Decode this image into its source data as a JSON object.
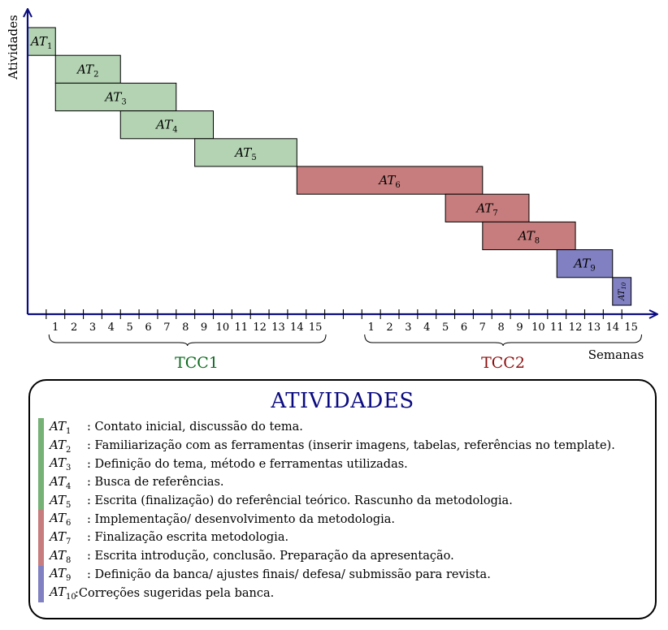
{
  "y_axis_label": "Atividades",
  "x_axis_label": "Semanas",
  "groups": [
    {
      "name": "TCC1",
      "color": "#0d6b1f",
      "weeks": [
        "1",
        "2",
        "3",
        "4",
        "5",
        "6",
        "7",
        "8",
        "9",
        "10",
        "11",
        "12",
        "13",
        "14",
        "15"
      ]
    },
    {
      "name": "TCC2",
      "color": "#8b0f0f",
      "weeks": [
        "1",
        "2",
        "3",
        "4",
        "5",
        "6",
        "7",
        "8",
        "9",
        "10",
        "11",
        "12",
        "13",
        "14",
        "15"
      ]
    }
  ],
  "colors": {
    "green": "#b3d3b3",
    "red": "#c77d7d",
    "blue": "#8080c2",
    "axis": "#0b0b80"
  },
  "tasks": [
    {
      "id": "AT",
      "sub": "1",
      "start": 0,
      "end": 1.5,
      "color": "green"
    },
    {
      "id": "AT",
      "sub": "2",
      "start": 1.5,
      "end": 5,
      "color": "green"
    },
    {
      "id": "AT",
      "sub": "3",
      "start": 1.5,
      "end": 8,
      "color": "green"
    },
    {
      "id": "AT",
      "sub": "4",
      "start": 5,
      "end": 10,
      "color": "green"
    },
    {
      "id": "AT",
      "sub": "5",
      "start": 9,
      "end": 14.5,
      "color": "green"
    },
    {
      "id": "AT",
      "sub": "6",
      "start": 14.5,
      "end": 24.5,
      "color": "red"
    },
    {
      "id": "AT",
      "sub": "7",
      "start": 22.5,
      "end": 27,
      "color": "red"
    },
    {
      "id": "AT",
      "sub": "8",
      "start": 24.5,
      "end": 29.5,
      "color": "red"
    },
    {
      "id": "AT",
      "sub": "9",
      "start": 28.5,
      "end": 31.5,
      "color": "blue"
    },
    {
      "id": "AT",
      "sub": "10",
      "start": 31.5,
      "end": 32.5,
      "color": "blue"
    }
  ],
  "legend": {
    "title": "ATIVIDADES",
    "items": [
      {
        "id": "AT",
        "sub": "1",
        "text": ": Contato inicial, discussão do tema.",
        "color": "#76b176"
      },
      {
        "id": "AT",
        "sub": "2",
        "text": ": Familiarização com as ferramentas (inserir imagens, tabelas, referências no template).",
        "color": "#76b176"
      },
      {
        "id": "AT",
        "sub": "3",
        "text": ": Definição do tema, método e ferramentas utilizadas.",
        "color": "#76b176"
      },
      {
        "id": "AT",
        "sub": "4",
        "text": ": Busca de referências.",
        "color": "#76b176"
      },
      {
        "id": "AT",
        "sub": "5",
        "text": ": Escrita (finalização) do referêncial teórico. Rascunho da metodologia.",
        "color": "#76b176"
      },
      {
        "id": "AT",
        "sub": "6",
        "text": ": Implementação/ desenvolvimento da metodologia.",
        "color": "#c77d7d"
      },
      {
        "id": "AT",
        "sub": "7",
        "text": ": Finalização escrita metodologia.",
        "color": "#c77d7d"
      },
      {
        "id": "AT",
        "sub": "8",
        "text": ": Escrita introdução, conclusão. Preparação da apresentação.",
        "color": "#c77d7d"
      },
      {
        "id": "AT",
        "sub": "9",
        "text": ": Definição da banca/ ajustes finais/ defesa/ submissão para revista.",
        "color": "#8080c2"
      },
      {
        "id": "AT",
        "sub": "10",
        "text": ":Correções sugeridas pela banca.",
        "color": "#8080c2"
      }
    ]
  }
}
